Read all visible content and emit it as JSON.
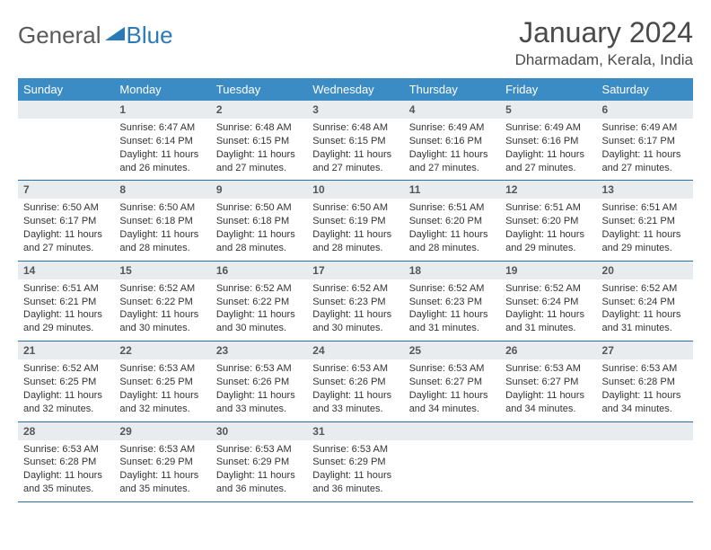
{
  "logo": {
    "text_general": "General",
    "text_blue": "Blue"
  },
  "header": {
    "month_title": "January 2024",
    "location": "Dharmadam, Kerala, India"
  },
  "colors": {
    "header_bg": "#3b8bc4",
    "header_text": "#ffffff",
    "daynum_bg": "#e9ecef",
    "cell_border": "#2a6fa3",
    "logo_gray": "#5a5a5a",
    "logo_blue": "#2a7ab8",
    "body_text": "#333333"
  },
  "typography": {
    "title_fontsize": 32,
    "location_fontsize": 17,
    "dayhead_fontsize": 13,
    "daynum_fontsize": 12,
    "body_fontsize": 11
  },
  "calendar": {
    "type": "table",
    "columns": [
      "Sunday",
      "Monday",
      "Tuesday",
      "Wednesday",
      "Thursday",
      "Friday",
      "Saturday"
    ],
    "weeks": [
      [
        null,
        {
          "day": "1",
          "sunrise": "Sunrise: 6:47 AM",
          "sunset": "Sunset: 6:14 PM",
          "daylight1": "Daylight: 11 hours",
          "daylight2": "and 26 minutes."
        },
        {
          "day": "2",
          "sunrise": "Sunrise: 6:48 AM",
          "sunset": "Sunset: 6:15 PM",
          "daylight1": "Daylight: 11 hours",
          "daylight2": "and 27 minutes."
        },
        {
          "day": "3",
          "sunrise": "Sunrise: 6:48 AM",
          "sunset": "Sunset: 6:15 PM",
          "daylight1": "Daylight: 11 hours",
          "daylight2": "and 27 minutes."
        },
        {
          "day": "4",
          "sunrise": "Sunrise: 6:49 AM",
          "sunset": "Sunset: 6:16 PM",
          "daylight1": "Daylight: 11 hours",
          "daylight2": "and 27 minutes."
        },
        {
          "day": "5",
          "sunrise": "Sunrise: 6:49 AM",
          "sunset": "Sunset: 6:16 PM",
          "daylight1": "Daylight: 11 hours",
          "daylight2": "and 27 minutes."
        },
        {
          "day": "6",
          "sunrise": "Sunrise: 6:49 AM",
          "sunset": "Sunset: 6:17 PM",
          "daylight1": "Daylight: 11 hours",
          "daylight2": "and 27 minutes."
        }
      ],
      [
        {
          "day": "7",
          "sunrise": "Sunrise: 6:50 AM",
          "sunset": "Sunset: 6:17 PM",
          "daylight1": "Daylight: 11 hours",
          "daylight2": "and 27 minutes."
        },
        {
          "day": "8",
          "sunrise": "Sunrise: 6:50 AM",
          "sunset": "Sunset: 6:18 PM",
          "daylight1": "Daylight: 11 hours",
          "daylight2": "and 28 minutes."
        },
        {
          "day": "9",
          "sunrise": "Sunrise: 6:50 AM",
          "sunset": "Sunset: 6:18 PM",
          "daylight1": "Daylight: 11 hours",
          "daylight2": "and 28 minutes."
        },
        {
          "day": "10",
          "sunrise": "Sunrise: 6:50 AM",
          "sunset": "Sunset: 6:19 PM",
          "daylight1": "Daylight: 11 hours",
          "daylight2": "and 28 minutes."
        },
        {
          "day": "11",
          "sunrise": "Sunrise: 6:51 AM",
          "sunset": "Sunset: 6:20 PM",
          "daylight1": "Daylight: 11 hours",
          "daylight2": "and 28 minutes."
        },
        {
          "day": "12",
          "sunrise": "Sunrise: 6:51 AM",
          "sunset": "Sunset: 6:20 PM",
          "daylight1": "Daylight: 11 hours",
          "daylight2": "and 29 minutes."
        },
        {
          "day": "13",
          "sunrise": "Sunrise: 6:51 AM",
          "sunset": "Sunset: 6:21 PM",
          "daylight1": "Daylight: 11 hours",
          "daylight2": "and 29 minutes."
        }
      ],
      [
        {
          "day": "14",
          "sunrise": "Sunrise: 6:51 AM",
          "sunset": "Sunset: 6:21 PM",
          "daylight1": "Daylight: 11 hours",
          "daylight2": "and 29 minutes."
        },
        {
          "day": "15",
          "sunrise": "Sunrise: 6:52 AM",
          "sunset": "Sunset: 6:22 PM",
          "daylight1": "Daylight: 11 hours",
          "daylight2": "and 30 minutes."
        },
        {
          "day": "16",
          "sunrise": "Sunrise: 6:52 AM",
          "sunset": "Sunset: 6:22 PM",
          "daylight1": "Daylight: 11 hours",
          "daylight2": "and 30 minutes."
        },
        {
          "day": "17",
          "sunrise": "Sunrise: 6:52 AM",
          "sunset": "Sunset: 6:23 PM",
          "daylight1": "Daylight: 11 hours",
          "daylight2": "and 30 minutes."
        },
        {
          "day": "18",
          "sunrise": "Sunrise: 6:52 AM",
          "sunset": "Sunset: 6:23 PM",
          "daylight1": "Daylight: 11 hours",
          "daylight2": "and 31 minutes."
        },
        {
          "day": "19",
          "sunrise": "Sunrise: 6:52 AM",
          "sunset": "Sunset: 6:24 PM",
          "daylight1": "Daylight: 11 hours",
          "daylight2": "and 31 minutes."
        },
        {
          "day": "20",
          "sunrise": "Sunrise: 6:52 AM",
          "sunset": "Sunset: 6:24 PM",
          "daylight1": "Daylight: 11 hours",
          "daylight2": "and 31 minutes."
        }
      ],
      [
        {
          "day": "21",
          "sunrise": "Sunrise: 6:52 AM",
          "sunset": "Sunset: 6:25 PM",
          "daylight1": "Daylight: 11 hours",
          "daylight2": "and 32 minutes."
        },
        {
          "day": "22",
          "sunrise": "Sunrise: 6:53 AM",
          "sunset": "Sunset: 6:25 PM",
          "daylight1": "Daylight: 11 hours",
          "daylight2": "and 32 minutes."
        },
        {
          "day": "23",
          "sunrise": "Sunrise: 6:53 AM",
          "sunset": "Sunset: 6:26 PM",
          "daylight1": "Daylight: 11 hours",
          "daylight2": "and 33 minutes."
        },
        {
          "day": "24",
          "sunrise": "Sunrise: 6:53 AM",
          "sunset": "Sunset: 6:26 PM",
          "daylight1": "Daylight: 11 hours",
          "daylight2": "and 33 minutes."
        },
        {
          "day": "25",
          "sunrise": "Sunrise: 6:53 AM",
          "sunset": "Sunset: 6:27 PM",
          "daylight1": "Daylight: 11 hours",
          "daylight2": "and 34 minutes."
        },
        {
          "day": "26",
          "sunrise": "Sunrise: 6:53 AM",
          "sunset": "Sunset: 6:27 PM",
          "daylight1": "Daylight: 11 hours",
          "daylight2": "and 34 minutes."
        },
        {
          "day": "27",
          "sunrise": "Sunrise: 6:53 AM",
          "sunset": "Sunset: 6:28 PM",
          "daylight1": "Daylight: 11 hours",
          "daylight2": "and 34 minutes."
        }
      ],
      [
        {
          "day": "28",
          "sunrise": "Sunrise: 6:53 AM",
          "sunset": "Sunset: 6:28 PM",
          "daylight1": "Daylight: 11 hours",
          "daylight2": "and 35 minutes."
        },
        {
          "day": "29",
          "sunrise": "Sunrise: 6:53 AM",
          "sunset": "Sunset: 6:29 PM",
          "daylight1": "Daylight: 11 hours",
          "daylight2": "and 35 minutes."
        },
        {
          "day": "30",
          "sunrise": "Sunrise: 6:53 AM",
          "sunset": "Sunset: 6:29 PM",
          "daylight1": "Daylight: 11 hours",
          "daylight2": "and 36 minutes."
        },
        {
          "day": "31",
          "sunrise": "Sunrise: 6:53 AM",
          "sunset": "Sunset: 6:29 PM",
          "daylight1": "Daylight: 11 hours",
          "daylight2": "and 36 minutes."
        },
        null,
        null,
        null
      ]
    ]
  }
}
